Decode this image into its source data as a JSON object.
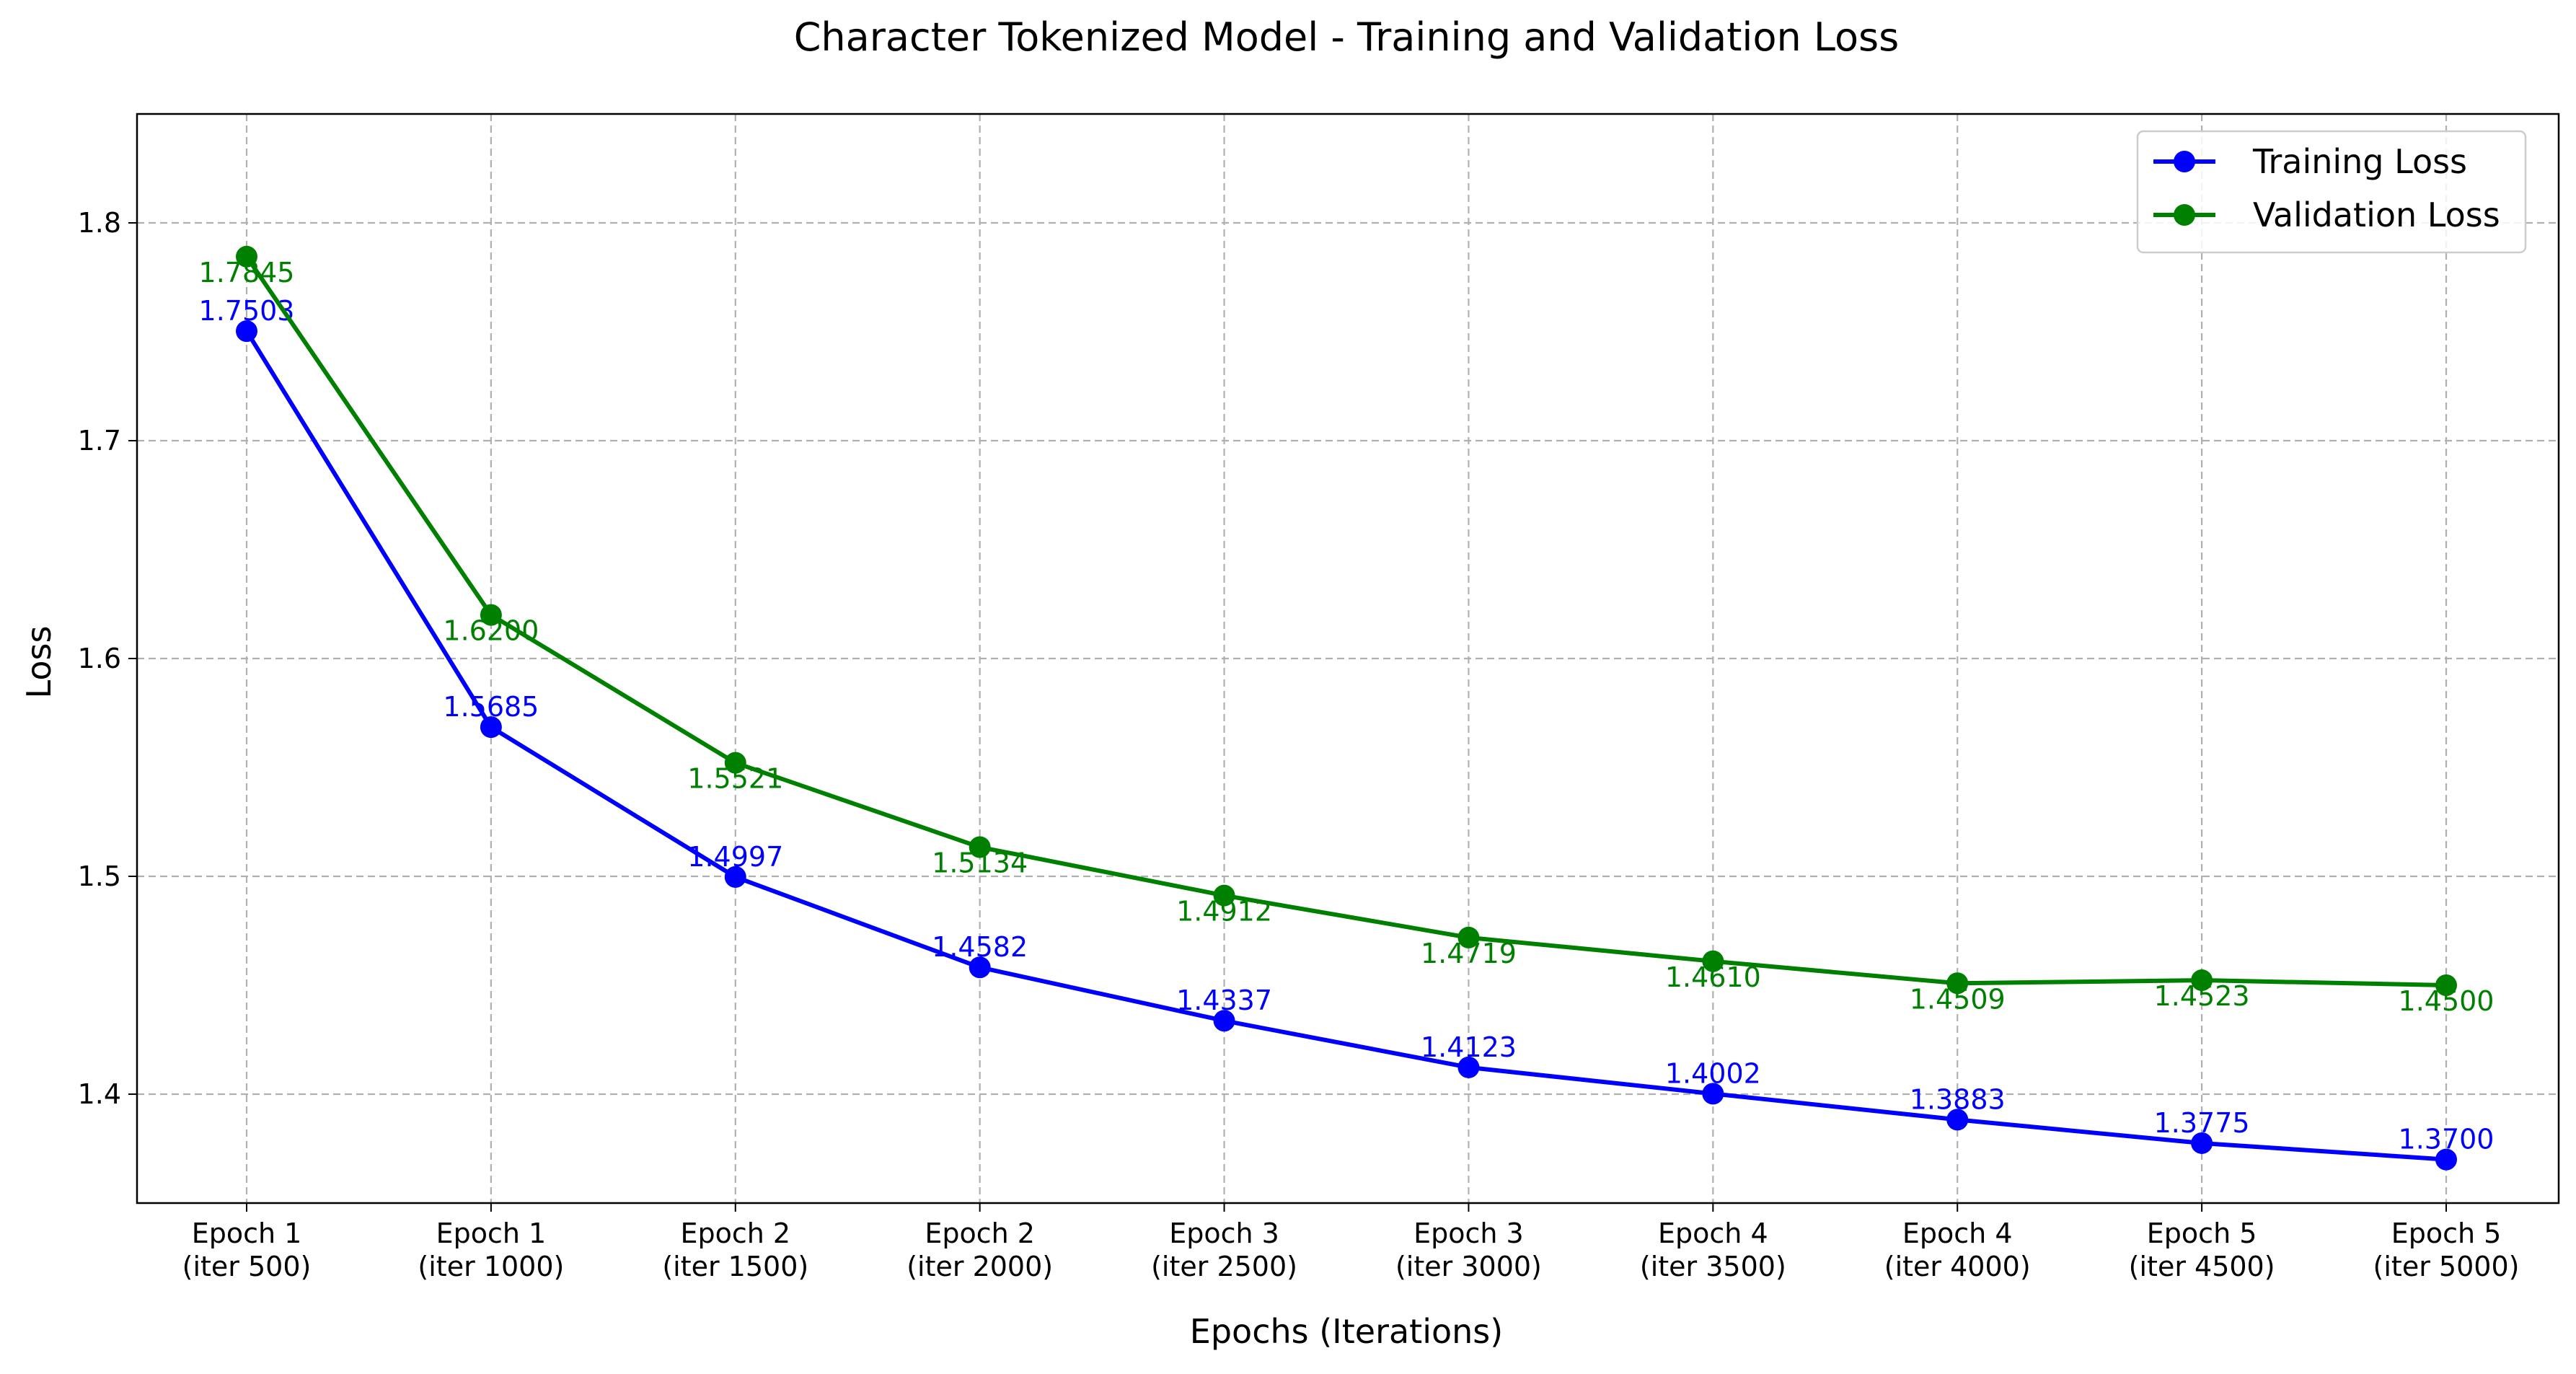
{
  "chart_data": {
    "type": "line",
    "title": "Character Tokenized Model - Training and Validation Loss",
    "xlabel": "Epochs (Iterations)",
    "ylabel": "Loss",
    "categories": [
      [
        "Epoch 1",
        "(iter 500)"
      ],
      [
        "Epoch 1",
        "(iter 1000)"
      ],
      [
        "Epoch 2",
        "(iter 1500)"
      ],
      [
        "Epoch 2",
        "(iter 2000)"
      ],
      [
        "Epoch 3",
        "(iter 2500)"
      ],
      [
        "Epoch 3",
        "(iter 3000)"
      ],
      [
        "Epoch 4",
        "(iter 3500)"
      ],
      [
        "Epoch 4",
        "(iter 4000)"
      ],
      [
        "Epoch 5",
        "(iter 4500)"
      ],
      [
        "Epoch 5",
        "(iter 5000)"
      ]
    ],
    "ylim": [
      1.35,
      1.85
    ],
    "yticks": [
      1.4,
      1.5,
      1.6,
      1.7,
      1.8
    ],
    "grid": true,
    "legend_position": "top-right",
    "series": [
      {
        "name": "Training Loss",
        "color": "#0000ff",
        "values": [
          1.7503,
          1.5685,
          1.4997,
          1.4582,
          1.4337,
          1.4123,
          1.4002,
          1.3883,
          1.3775,
          1.37
        ],
        "labels": [
          "1.7503",
          "1.5685",
          "1.4997",
          "1.4582",
          "1.4337",
          "1.4123",
          "1.4002",
          "1.3883",
          "1.3775",
          "1.3700"
        ]
      },
      {
        "name": "Validation Loss",
        "color": "#008000",
        "values": [
          1.7845,
          1.62,
          1.5521,
          1.5134,
          1.4912,
          1.4719,
          1.461,
          1.4509,
          1.4523,
          1.45
        ],
        "labels": [
          "1.7845",
          "1.6200",
          "1.5521",
          "1.5134",
          "1.4912",
          "1.4719",
          "1.4610",
          "1.4509",
          "1.4523",
          "1.4500"
        ]
      }
    ]
  }
}
